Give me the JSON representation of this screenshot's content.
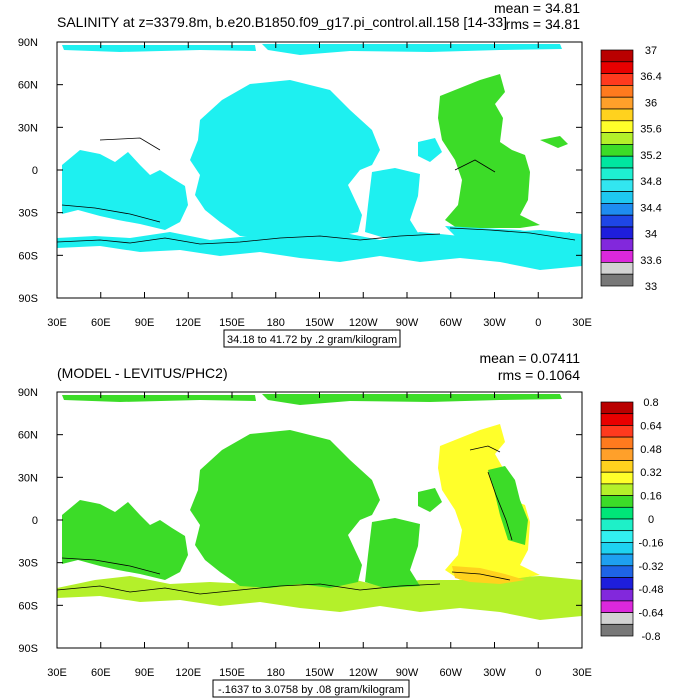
{
  "chart_data": [
    {
      "type": "heatmap",
      "title": "SALINITY at z=3379.8m, b.e20.B1850.f09_g17.pi_control.all.158 [14-33]",
      "stats": {
        "mean": "mean = 34.81",
        "rms": "rms = 34.81"
      },
      "range_note": "34.18 to 41.72 by .2 gram/kilogram",
      "x_tick_labels": [
        "30E",
        "60E",
        "90E",
        "120E",
        "150E",
        "180",
        "150W",
        "120W",
        "90W",
        "60W",
        "30W",
        "0",
        "30E"
      ],
      "y_tick_labels": [
        "90N",
        "60N",
        "30N",
        "0",
        "30S",
        "60S",
        "90S"
      ],
      "xlim": [
        30,
        390
      ],
      "ylim": [
        -90,
        90
      ],
      "colorbar": {
        "labels": [
          "37",
          "36.4",
          "36",
          "35.6",
          "35.2",
          "34.8",
          "34.4",
          "34",
          "33.6",
          "33"
        ],
        "colors": [
          "#b90000",
          "#e80000",
          "#ff3a1e",
          "#ff7a1e",
          "#ffa02a",
          "#ffd21e",
          "#ffff2a",
          "#b4f02a",
          "#3cdc28",
          "#00e6a0",
          "#1ef0d2",
          "#32e6f0",
          "#1ec8f0",
          "#1e8cf0",
          "#1e46e6",
          "#1e1edc",
          "#8228dc",
          "#dc28dc",
          "#d2d2d2",
          "#787878"
        ],
        "main_value": 34.8
      }
    },
    {
      "type": "heatmap",
      "title": "(MODEL - LEVITUS/PHC2)",
      "stats": {
        "mean": "mean = 0.07411",
        "rms": "rms = 0.1064"
      },
      "range_note": "-.1637 to 3.0758 by .08 gram/kilogram",
      "x_tick_labels": [
        "30E",
        "60E",
        "90E",
        "120E",
        "150E",
        "180",
        "150W",
        "120W",
        "90W",
        "60W",
        "30W",
        "0",
        "30E"
      ],
      "y_tick_labels": [
        "90N",
        "60N",
        "30N",
        "0",
        "30S",
        "60S",
        "90S"
      ],
      "xlim": [
        30,
        390
      ],
      "ylim": [
        -90,
        90
      ],
      "colorbar": {
        "labels": [
          "0.8",
          "0.64",
          "0.48",
          "0.32",
          "0.16",
          "0",
          "-0.16",
          "-0.32",
          "-0.48",
          "-0.64",
          "-0.8"
        ],
        "colors": [
          "#b90000",
          "#e80000",
          "#ff3a1e",
          "#ff7a1e",
          "#ffa02a",
          "#ffd21e",
          "#ffff2a",
          "#b4f02a",
          "#3cdc28",
          "#00e678",
          "#1ef0c8",
          "#32f0f0",
          "#1ed2f0",
          "#1ea0f0",
          "#1e64e6",
          "#1e1edc",
          "#8228dc",
          "#dc28dc",
          "#d2d2d2",
          "#787878"
        ],
        "main_value": 0.05
      }
    }
  ]
}
